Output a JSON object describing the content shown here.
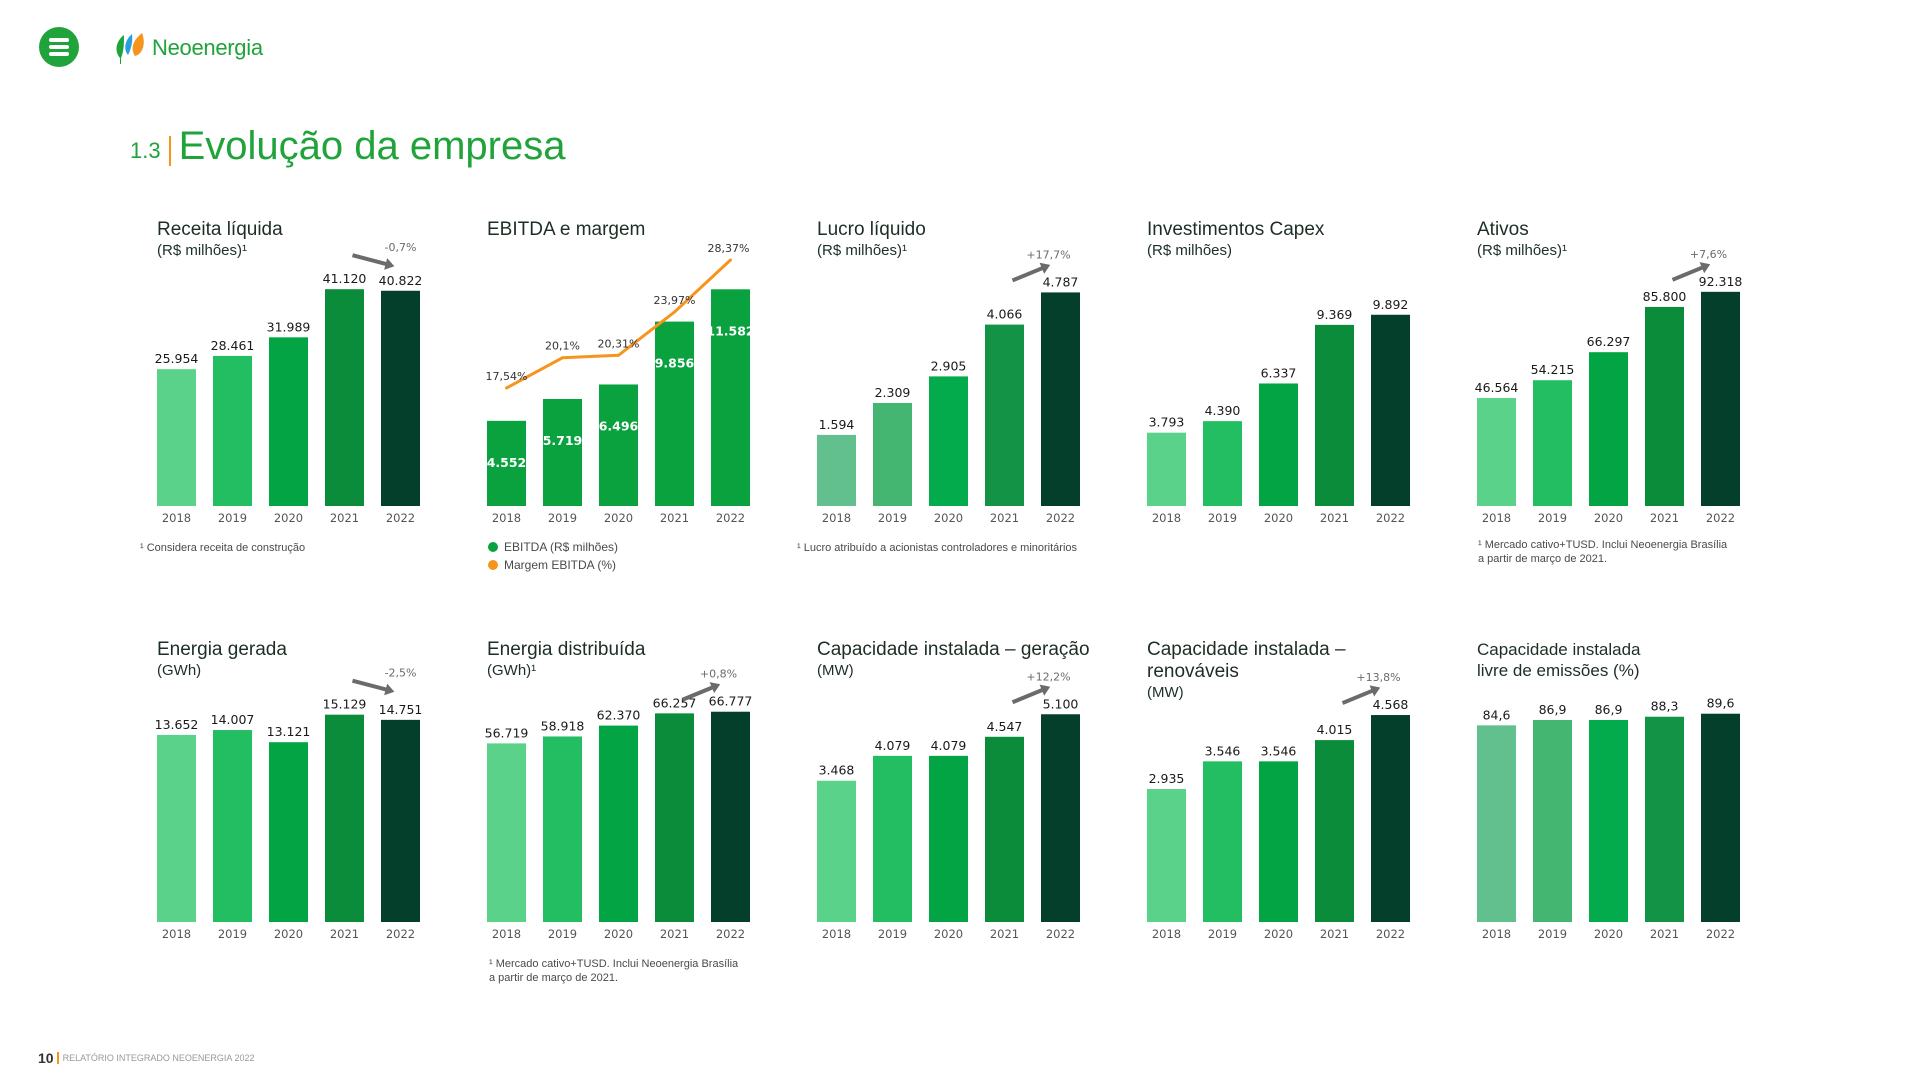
{
  "header": {
    "brand": "Neoenergia",
    "section_number": "1.3",
    "section_title": "Evolução da empresa",
    "menu_icon": "hamburger-menu-icon",
    "logo_icon": "neoenergia-leaves-logo"
  },
  "colors": {
    "brand_green": "#1fa33a",
    "accent_orange": "#f7941d",
    "bar_palette": [
      "#5bd28a",
      "#24be62",
      "#03a443",
      "#0a8c3a",
      "#033f2a"
    ],
    "bar_palette_alt": [
      "#62c08e",
      "#45b672",
      "#04ab4c",
      "#139346",
      "#033f2a"
    ],
    "ebitda_green": "#0aa23f",
    "arrow_gray": "#6b6b6b"
  },
  "footer": {
    "page": "10",
    "text": "RELATÓRIO INTEGRADO NEOENERGIA 2022"
  },
  "chart_data": [
    {
      "id": "receita",
      "type": "bar",
      "title": "Receita líquida",
      "subtitle": "(R$ milhões)¹",
      "categories": [
        "2018",
        "2019",
        "2020",
        "2021",
        "2022"
      ],
      "values": [
        25954,
        28461,
        31989,
        41120,
        40822
      ],
      "labels": [
        "25.954",
        "28.461",
        "31.989",
        "41.120",
        "40.822"
      ],
      "ylim": [
        0,
        44000
      ],
      "change": {
        "label": "-0,7%",
        "direction": "down"
      },
      "footnote": [
        "¹ Considera receita de construção"
      ]
    },
    {
      "id": "ebitda",
      "type": "bar+line",
      "title": "EBITDA e margem",
      "subtitle": "",
      "categories": [
        "2018",
        "2019",
        "2020",
        "2021",
        "2022"
      ],
      "series": [
        {
          "name": "EBITDA (R$ milhões)",
          "type": "bar",
          "values": [
            4552,
            5719,
            6496,
            9856,
            11582
          ],
          "labels": [
            "4.552",
            "5.719",
            "6.496",
            "9.856",
            "11.582"
          ]
        },
        {
          "name": "Margem EBITDA (%)",
          "type": "line",
          "values": [
            17.54,
            20.1,
            20.31,
            23.97,
            28.37
          ],
          "labels": [
            "17,54%",
            "20,1%",
            "20,31%",
            "23,97%",
            "28,37%"
          ]
        }
      ],
      "ylim": [
        0,
        12400
      ],
      "legend": [
        "EBITDA (R$ milhões)",
        "Margem EBITDA (%)"
      ],
      "legend_position": "bottom-left"
    },
    {
      "id": "lucro",
      "type": "bar",
      "title": "Lucro líquido",
      "subtitle": "(R$ milhões)¹",
      "categories": [
        "2018",
        "2019",
        "2020",
        "2021",
        "2022"
      ],
      "values": [
        1594,
        2309,
        2905,
        4066,
        4787
      ],
      "labels": [
        "1.594",
        "2.309",
        "2.905",
        "4.066",
        "4.787"
      ],
      "ylim": [
        0,
        5200
      ],
      "change": {
        "label": "+17,7%",
        "direction": "up"
      },
      "footnote": [
        "¹ Lucro atribuído a acionistas controladores e minoritários"
      ],
      "alt_palette": true
    },
    {
      "id": "capex",
      "type": "bar",
      "title": "Investimentos Capex",
      "subtitle": "(R$ milhões)",
      "categories": [
        "2018",
        "2019",
        "2020",
        "2021",
        "2022"
      ],
      "values": [
        3793,
        4390,
        6337,
        9369,
        9892
      ],
      "labels": [
        "3.793",
        "4.390",
        "6.337",
        "9.369",
        "9.892"
      ],
      "ylim": [
        0,
        12000
      ]
    },
    {
      "id": "ativos",
      "type": "bar",
      "title": "Ativos",
      "subtitle": "(R$ milhões)¹",
      "categories": [
        "2018",
        "2019",
        "2020",
        "2021",
        "2022"
      ],
      "values": [
        46564,
        54215,
        66297,
        85800,
        92318
      ],
      "labels": [
        "46.564",
        "54.215",
        "66.297",
        "85.800",
        "92.318"
      ],
      "ylim": [
        0,
        100000
      ],
      "change": {
        "label": "+7,6%",
        "direction": "up"
      },
      "footnote": [
        "¹ Mercado cativo+TUSD. Inclui Neoenergia Brasília",
        "a partir de março de 2021."
      ]
    },
    {
      "id": "energia-gerada",
      "type": "bar",
      "title": "Energia gerada",
      "subtitle": "(GWh)",
      "categories": [
        "2018",
        "2019",
        "2020",
        "2021",
        "2022"
      ],
      "values": [
        13652,
        14007,
        13121,
        15129,
        14751
      ],
      "labels": [
        "13.652",
        "14.007",
        "13.121",
        "15.129",
        "14.751"
      ],
      "ylim": [
        0,
        16200
      ],
      "change": {
        "label": "-2,5%",
        "direction": "down"
      }
    },
    {
      "id": "energia-distribuida",
      "type": "bar",
      "title": "Energia distribuída",
      "subtitle": "(GWh)¹",
      "categories": [
        "2018",
        "2019",
        "2020",
        "2021",
        "2022"
      ],
      "values": [
        56719,
        58918,
        62370,
        66257,
        66777
      ],
      "labels": [
        "56.719",
        "58.918",
        "62.370",
        "66.257",
        "66.777"
      ],
      "ylim": [
        0,
        70500
      ],
      "change": {
        "label": "+0,8%",
        "direction": "up"
      },
      "footnote": [
        "¹ Mercado cativo+TUSD. Inclui Neoenergia Brasília",
        "a partir de março de 2021."
      ]
    },
    {
      "id": "cap-geracao",
      "type": "bar",
      "title": "Capacidade instalada – geração",
      "subtitle": "(MW)",
      "categories": [
        "2018",
        "2019",
        "2020",
        "2021",
        "2022"
      ],
      "values": [
        3468,
        4079,
        4079,
        4547,
        5100
      ],
      "labels": [
        "3.468",
        "4.079",
        "4.079",
        "4.547",
        "5.100"
      ],
      "ylim": [
        0,
        5450
      ],
      "change": {
        "label": "+12,2%",
        "direction": "up"
      }
    },
    {
      "id": "cap-renovaveis",
      "type": "bar",
      "title": "Capacidade instalada –",
      "title2": "renováveis",
      "subtitle": "(MW)",
      "categories": [
        "2018",
        "2019",
        "2020",
        "2021",
        "2022"
      ],
      "values": [
        2935,
        3546,
        3546,
        4015,
        4568
      ],
      "labels": [
        "2.935",
        "3.546",
        "3.546",
        "4.015",
        "4.568"
      ],
      "ylim": [
        0,
        4900
      ],
      "change": {
        "label": "+13,8%",
        "direction": "up"
      }
    },
    {
      "id": "cap-livre",
      "type": "bar",
      "title": "Capacidade instalada",
      "title2": "livre de emissões (%)",
      "subtitle": "",
      "categories": [
        "2018",
        "2019",
        "2020",
        "2021",
        "2022"
      ],
      "values": [
        84.6,
        86.9,
        86.9,
        88.3,
        89.6
      ],
      "labels": [
        "84,6",
        "86,9",
        "86,9",
        "88,3",
        "89,6"
      ],
      "ylim": [
        0,
        95.5
      ],
      "alt_palette": true
    }
  ]
}
